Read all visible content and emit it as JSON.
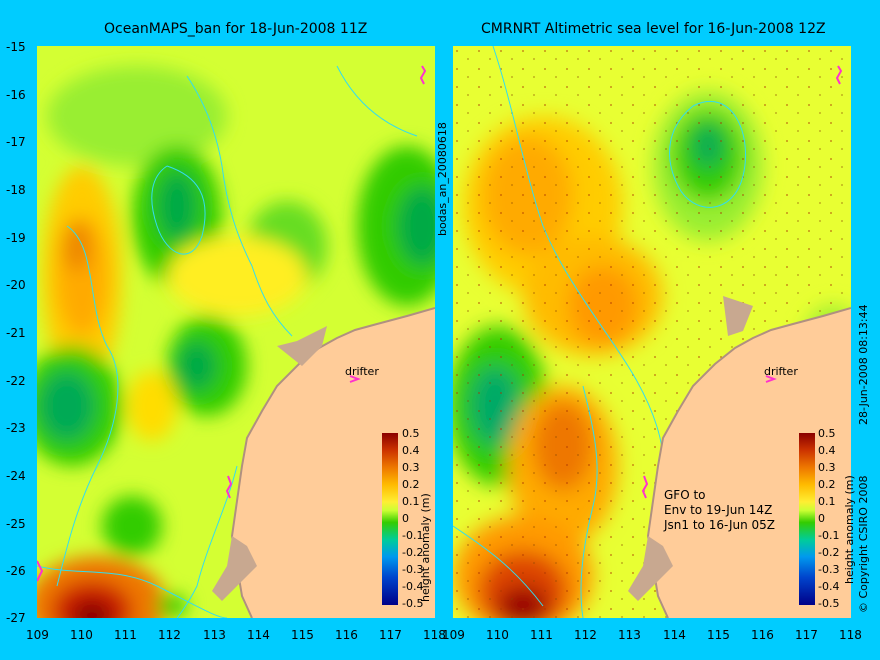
{
  "left": {
    "title": "OceanMAPS_ban for 18-Jun-2008 11Z",
    "drifter": "drifter"
  },
  "right": {
    "title": "CMRNRT Altimetric sea level  for 16-Jun-2008 12Z",
    "drifter": "drifter",
    "notes": [
      "GFO to",
      "Env to 19-Jun 14Z",
      "Jsn1 to 16-Jun 05Z"
    ]
  },
  "lat_ticks": [
    "-15",
    "-16",
    "-17",
    "-18",
    "-19",
    "-20",
    "-21",
    "-22",
    "-23",
    "-24",
    "-25",
    "-26",
    "-27"
  ],
  "lon_ticks": [
    "109",
    "110",
    "111",
    "112",
    "113",
    "114",
    "115",
    "116",
    "117",
    "118"
  ],
  "colorbar": {
    "label": "height anomaly (m)",
    "ticks": [
      "0.5",
      "0.4",
      "0.3",
      "0.2",
      "0.1",
      "0",
      "-0.1",
      "-0.2",
      "-0.3",
      "-0.4",
      "-0.5"
    ]
  },
  "side_labels": {
    "middle": "bodas_an_20080618",
    "right_top": "28-Jun-2008 08:13:44",
    "right_bottom": "© Copyright CSIRO 2008"
  },
  "colors": {
    "background": "#00ccff",
    "land": "#ffcc99",
    "coast": "#c8a890",
    "contour": "#33ddee"
  }
}
